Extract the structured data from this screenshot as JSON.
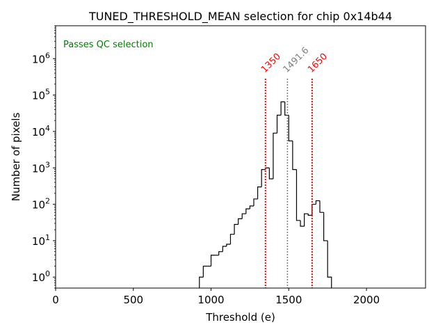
{
  "chart_data": {
    "type": "histogram",
    "title": "TUNED_THRESHOLD_MEAN selection for chip 0x14b44",
    "xlabel": "Threshold (e)",
    "ylabel": "Number of pixels",
    "xlim": [
      0,
      2380
    ],
    "ylim": [
      0.5,
      8000000
    ],
    "yscale": "log",
    "x_ticks": [
      {
        "value": 0,
        "label": "0"
      },
      {
        "value": 500,
        "label": "500"
      },
      {
        "value": 1000,
        "label": "1000"
      },
      {
        "value": 1500,
        "label": "1500"
      },
      {
        "value": 2000,
        "label": "2000"
      }
    ],
    "y_ticks": [
      {
        "value": 1,
        "base": "10",
        "exp": "0"
      },
      {
        "value": 10,
        "base": "10",
        "exp": "1"
      },
      {
        "value": 100,
        "base": "10",
        "exp": "2"
      },
      {
        "value": 1000,
        "base": "10",
        "exp": "3"
      },
      {
        "value": 10000,
        "base": "10",
        "exp": "4"
      },
      {
        "value": 100000,
        "base": "10",
        "exp": "5"
      },
      {
        "value": 1000000,
        "base": "10",
        "exp": "6"
      }
    ],
    "bin_width": 25,
    "bins": [
      {
        "x0": 925,
        "count": 1
      },
      {
        "x0": 950,
        "count": 2
      },
      {
        "x0": 975,
        "count": 2
      },
      {
        "x0": 1000,
        "count": 4
      },
      {
        "x0": 1025,
        "count": 4
      },
      {
        "x0": 1050,
        "count": 5
      },
      {
        "x0": 1075,
        "count": 7
      },
      {
        "x0": 1100,
        "count": 8
      },
      {
        "x0": 1125,
        "count": 15
      },
      {
        "x0": 1150,
        "count": 28
      },
      {
        "x0": 1175,
        "count": 40
      },
      {
        "x0": 1200,
        "count": 55
      },
      {
        "x0": 1225,
        "count": 75
      },
      {
        "x0": 1250,
        "count": 90
      },
      {
        "x0": 1275,
        "count": 140
      },
      {
        "x0": 1300,
        "count": 300
      },
      {
        "x0": 1325,
        "count": 900
      },
      {
        "x0": 1350,
        "count": 1000
      },
      {
        "x0": 1375,
        "count": 500
      },
      {
        "x0": 1400,
        "count": 9000
      },
      {
        "x0": 1425,
        "count": 28000
      },
      {
        "x0": 1450,
        "count": 65000
      },
      {
        "x0": 1475,
        "count": 28000
      },
      {
        "x0": 1500,
        "count": 5500
      },
      {
        "x0": 1525,
        "count": 900
      },
      {
        "x0": 1550,
        "count": 36
      },
      {
        "x0": 1575,
        "count": 25
      },
      {
        "x0": 1600,
        "count": 55
      },
      {
        "x0": 1625,
        "count": 50
      },
      {
        "x0": 1650,
        "count": 100
      },
      {
        "x0": 1675,
        "count": 125
      },
      {
        "x0": 1700,
        "count": 60
      },
      {
        "x0": 1725,
        "count": 10
      },
      {
        "x0": 1750,
        "count": 1
      }
    ],
    "vlines": [
      {
        "x": 1350,
        "label": "1350",
        "color": "#ff0000",
        "style": "dotted"
      },
      {
        "x": 1491.6,
        "label": "1491.6",
        "color": "#808080",
        "style": "dotted"
      },
      {
        "x": 1650,
        "label": "1650",
        "color": "#ff0000",
        "style": "dotted"
      }
    ],
    "annotation": {
      "text": "Passes QC selection",
      "color": "#008000"
    },
    "line_color": "#000000"
  }
}
